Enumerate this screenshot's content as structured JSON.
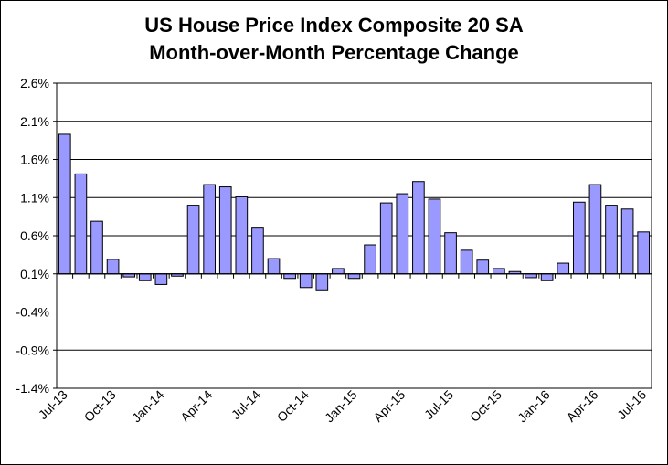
{
  "chart_data": {
    "type": "bar",
    "title": [
      "US House Price Index Composite  20 SA",
      "Month-over-Month Percentage Change"
    ],
    "xlabel": "",
    "ylabel": "",
    "ylim": [
      -1.4,
      2.6
    ],
    "yticks": [
      "2.6%",
      "2.1%",
      "1.6%",
      "1.1%",
      "0.6%",
      "0.1%",
      "-0.4%",
      "-0.9%",
      "-1.4%"
    ],
    "ytick_values": [
      2.6,
      2.1,
      1.6,
      1.1,
      0.6,
      0.1,
      -0.4,
      -0.9,
      -1.4
    ],
    "baseline": 0.1,
    "grid": true,
    "bar_color": "#9999ff",
    "categories": [
      "Jul-13",
      "Aug-13",
      "Sep-13",
      "Oct-13",
      "Nov-13",
      "Dec-13",
      "Jan-14",
      "Feb-14",
      "Mar-14",
      "Apr-14",
      "May-14",
      "Jun-14",
      "Jul-14",
      "Aug-14",
      "Sep-14",
      "Oct-14",
      "Nov-14",
      "Dec-14",
      "Jan-15",
      "Feb-15",
      "Mar-15",
      "Apr-15",
      "May-15",
      "Jun-15",
      "Jul-15",
      "Aug-15",
      "Sep-15",
      "Oct-15",
      "Nov-15",
      "Dec-15",
      "Jan-16",
      "Feb-16",
      "Mar-16",
      "Apr-16",
      "May-16",
      "Jun-16",
      "Jul-16"
    ],
    "values": [
      1.93,
      1.41,
      0.79,
      0.29,
      0.06,
      0.01,
      -0.04,
      0.07,
      1.0,
      1.27,
      1.24,
      1.11,
      0.7,
      0.3,
      0.04,
      -0.08,
      -0.11,
      0.17,
      0.04,
      0.48,
      1.03,
      1.15,
      1.31,
      1.08,
      0.64,
      0.41,
      0.28,
      0.17,
      0.13,
      0.05,
      0.01,
      0.24,
      1.04,
      1.27,
      1.0,
      0.95,
      0.65
    ],
    "xtick_labels": [
      "Jul-13",
      "Oct-13",
      "Jan-14",
      "Apr-14",
      "Jul-14",
      "Oct-14",
      "Jan-15",
      "Apr-15",
      "Jul-15",
      "Oct-15",
      "Jan-16",
      "Apr-16",
      "Jul-16"
    ],
    "xtick_indices": [
      0,
      3,
      6,
      9,
      12,
      15,
      18,
      21,
      24,
      27,
      30,
      33,
      36
    ]
  }
}
